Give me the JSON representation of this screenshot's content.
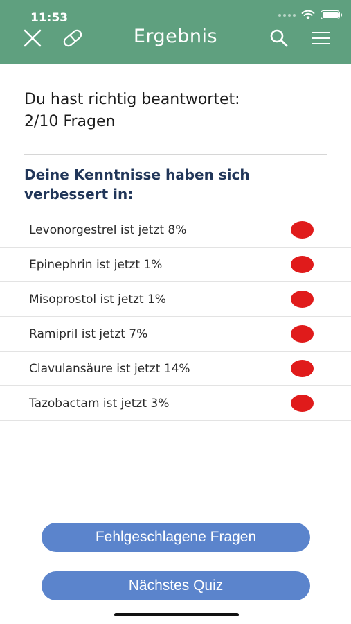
{
  "status_bar": {
    "time": "11:53"
  },
  "nav": {
    "title": "Ergebnis"
  },
  "result": {
    "label": "Du hast richtig beantwortet:",
    "score": "2/10 Fragen"
  },
  "improvements": {
    "heading": "Deine Kenntnisse haben sich verbessert in:",
    "items": [
      {
        "label": "Levonorgestrel ist jetzt 8%",
        "status_color": "#e01b1b"
      },
      {
        "label": "Epinephrin ist jetzt 1%",
        "status_color": "#e01b1b"
      },
      {
        "label": "Misoprostol ist jetzt 1%",
        "status_color": "#e01b1b"
      },
      {
        "label": "Ramipril ist jetzt 7%",
        "status_color": "#e01b1b"
      },
      {
        "label": "Clavulansäure ist jetzt 14%",
        "status_color": "#e01b1b"
      },
      {
        "label": "Tazobactam ist jetzt 3%",
        "status_color": "#e01b1b"
      }
    ]
  },
  "actions": {
    "failed_questions_label": "Fehlgeschlagene Fragen",
    "next_quiz_label": "Nächstes Quiz"
  },
  "colors": {
    "header": "#5fa07f",
    "button": "#5b84cc",
    "heading": "#213659",
    "status_dot": "#e01b1b"
  },
  "icons": [
    "close-icon",
    "pill-icon",
    "search-icon",
    "menu-icon",
    "wifi-icon",
    "battery-icon"
  ]
}
